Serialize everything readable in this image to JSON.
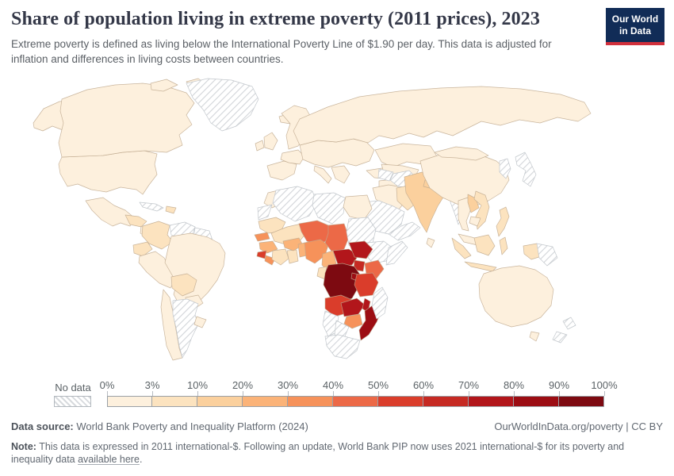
{
  "header": {
    "title": "Share of population living in extreme poverty (2011 prices), 2023",
    "subtitle": "Extreme poverty is defined as living below the International Poverty Line of $1.90 per day. This data is adjusted for inflation and differences in living costs between countries.",
    "logo_line1": "Our World",
    "logo_line2": "in Data"
  },
  "colors": {
    "logo_bg": "#112c57",
    "logo_stripe": "#d2303c",
    "title_text": "#343848",
    "body_text": "#5b6266",
    "no_data_hatch": "#d7dadd"
  },
  "chart_data": {
    "type": "heatmap",
    "subtype": "world-choropleth-map",
    "title": "Share of population living in extreme poverty (2011 prices), 2023",
    "year": "2023",
    "unit": "% of population",
    "legend": {
      "no_data_label": "No data",
      "tick_labels": [
        "0%",
        "3%",
        "10%",
        "20%",
        "30%",
        "40%",
        "50%",
        "60%",
        "70%",
        "80%",
        "90%",
        "100%"
      ],
      "bins": [
        {
          "range": "0-3%",
          "color": "#fdf0dd"
        },
        {
          "range": "3-10%",
          "color": "#fce3bf"
        },
        {
          "range": "10-20%",
          "color": "#fbd09d"
        },
        {
          "range": "20-30%",
          "color": "#fbb378"
        },
        {
          "range": "30-40%",
          "color": "#f6925a"
        },
        {
          "range": "40-50%",
          "color": "#ec6947"
        },
        {
          "range": "50-60%",
          "color": "#da3d2b"
        },
        {
          "range": "60-70%",
          "color": "#c62a23"
        },
        {
          "range": "70-80%",
          "color": "#b2161b"
        },
        {
          "range": "80-90%",
          "color": "#9c0d13"
        },
        {
          "range": "90-100%",
          "color": "#7d0a11"
        }
      ]
    },
    "regions": [
      {
        "id": "united-states",
        "name": "United States",
        "value_bin": "0-3%"
      },
      {
        "id": "canada",
        "name": "Canada",
        "value_bin": "0-3%"
      },
      {
        "id": "greenland",
        "name": "Greenland",
        "value_bin": "No data"
      },
      {
        "id": "iceland",
        "name": "Iceland",
        "value_bin": "0-3%"
      },
      {
        "id": "mexico",
        "name": "Mexico",
        "value_bin": "0-3%"
      },
      {
        "id": "guatemala-honduras",
        "name": "Guatemala & Honduras",
        "value_bin": "3-10%"
      },
      {
        "id": "central-america",
        "name": "Central America",
        "value_bin": "0-3%"
      },
      {
        "id": "cuba",
        "name": "Cuba",
        "value_bin": "No data"
      },
      {
        "id": "hispaniola",
        "name": "Haiti & Dominican Republic",
        "value_bin": "3-10%"
      },
      {
        "id": "colombia",
        "name": "Colombia",
        "value_bin": "3-10%"
      },
      {
        "id": "venezuela",
        "name": "Venezuela",
        "value_bin": "No data"
      },
      {
        "id": "guianas",
        "name": "Guyana & Suriname",
        "value_bin": "No data"
      },
      {
        "id": "ecuador",
        "name": "Ecuador",
        "value_bin": "3-10%"
      },
      {
        "id": "peru",
        "name": "Peru",
        "value_bin": "0-3%"
      },
      {
        "id": "brazil",
        "name": "Brazil",
        "value_bin": "0-3%"
      },
      {
        "id": "bolivia",
        "name": "Bolivia",
        "value_bin": "3-10%"
      },
      {
        "id": "paraguay",
        "name": "Paraguay",
        "value_bin": "0-3%"
      },
      {
        "id": "chile",
        "name": "Chile",
        "value_bin": "0-3%"
      },
      {
        "id": "argentina",
        "name": "Argentina",
        "value_bin": "No data"
      },
      {
        "id": "uruguay",
        "name": "Uruguay",
        "value_bin": "0-3%"
      },
      {
        "id": "europe",
        "name": "Europe",
        "value_bin": "0-3%"
      },
      {
        "id": "russia",
        "name": "Russia",
        "value_bin": "0-3%"
      },
      {
        "id": "turkey",
        "name": "Turkey",
        "value_bin": "0-3%"
      },
      {
        "id": "levant-iraq",
        "name": "Iraq & Levant",
        "value_bin": "0-3%"
      },
      {
        "id": "iran",
        "name": "Iran",
        "value_bin": "0-3%"
      },
      {
        "id": "saudi-arabia",
        "name": "Saudi Arabia",
        "value_bin": "No data"
      },
      {
        "id": "yemen-oman",
        "name": "Yemen & Oman",
        "value_bin": "No data"
      },
      {
        "id": "kazakhstan",
        "name": "Kazakhstan",
        "value_bin": "0-3%"
      },
      {
        "id": "central-asia",
        "name": "Central Asia",
        "value_bin": "0-3%"
      },
      {
        "id": "turkmenistan",
        "name": "Turkmenistan",
        "value_bin": "No data"
      },
      {
        "id": "afghanistan",
        "name": "Afghanistan",
        "value_bin": "No data"
      },
      {
        "id": "pakistan",
        "name": "Pakistan",
        "value_bin": "3-10%"
      },
      {
        "id": "india",
        "name": "India",
        "value_bin": "10-20%"
      },
      {
        "id": "nepal",
        "name": "Nepal",
        "value_bin": "10-20%"
      },
      {
        "id": "bangladesh",
        "name": "Bangladesh",
        "value_bin": "20-30%"
      },
      {
        "id": "sri-lanka",
        "name": "Sri Lanka",
        "value_bin": "0-3%"
      },
      {
        "id": "myanmar",
        "name": "Myanmar",
        "value_bin": "No data"
      },
      {
        "id": "china",
        "name": "China",
        "value_bin": "0-3%"
      },
      {
        "id": "mongolia",
        "name": "Mongolia",
        "value_bin": "0-3%"
      },
      {
        "id": "japan",
        "name": "Japan",
        "value_bin": "No data"
      },
      {
        "id": "korea",
        "name": "Korea",
        "value_bin": "No data"
      },
      {
        "id": "thailand",
        "name": "Thailand",
        "value_bin": "0-3%"
      },
      {
        "id": "laos",
        "name": "Laos",
        "value_bin": "10-20%"
      },
      {
        "id": "vietnam",
        "name": "Vietnam",
        "value_bin": "3-10%"
      },
      {
        "id": "cambodia",
        "name": "Cambodia",
        "value_bin": "0-3%"
      },
      {
        "id": "malaysia",
        "name": "Malaysia",
        "value_bin": "0-3%"
      },
      {
        "id": "philippines",
        "name": "Philippines",
        "value_bin": "3-10%"
      },
      {
        "id": "indonesia",
        "name": "Indonesia",
        "value_bin": "3-10%"
      },
      {
        "id": "papua-new-guinea",
        "name": "Papua New Guinea",
        "value_bin": "No data"
      },
      {
        "id": "australia",
        "name": "Australia",
        "value_bin": "0-3%"
      },
      {
        "id": "new-zealand",
        "name": "New Zealand",
        "value_bin": "No data"
      },
      {
        "id": "morocco",
        "name": "Morocco",
        "value_bin": "0-3%"
      },
      {
        "id": "western-sahara",
        "name": "Western Sahara",
        "value_bin": "No data"
      },
      {
        "id": "algeria",
        "name": "Algeria",
        "value_bin": "No data"
      },
      {
        "id": "libya",
        "name": "Libya",
        "value_bin": "No data"
      },
      {
        "id": "egypt",
        "name": "Egypt",
        "value_bin": "0-3%"
      },
      {
        "id": "mauritania",
        "name": "Mauritania",
        "value_bin": "3-10%"
      },
      {
        "id": "mali",
        "name": "Mali",
        "value_bin": "3-10%"
      },
      {
        "id": "senegal",
        "name": "Senegal",
        "value_bin": "30-40%"
      },
      {
        "id": "guinea",
        "name": "Guinea",
        "value_bin": "20-30%"
      },
      {
        "id": "sierra-leone",
        "name": "Sierra Leone",
        "value_bin": "50-60%"
      },
      {
        "id": "liberia",
        "name": "Liberia",
        "value_bin": "30-40%"
      },
      {
        "id": "cote-divoire",
        "name": "Cote d'Ivoire",
        "value_bin": "3-10%"
      },
      {
        "id": "ghana",
        "name": "Ghana",
        "value_bin": "3-10%"
      },
      {
        "id": "burkina-faso",
        "name": "Burkina Faso",
        "value_bin": "20-30%"
      },
      {
        "id": "benin-togo",
        "name": "Benin & Togo",
        "value_bin": "20-30%"
      },
      {
        "id": "niger",
        "name": "Niger",
        "value_bin": "40-50%"
      },
      {
        "id": "nigeria",
        "name": "Nigeria",
        "value_bin": "30-40%"
      },
      {
        "id": "chad",
        "name": "Chad",
        "value_bin": "40-50%"
      },
      {
        "id": "sudan",
        "name": "Sudan",
        "value_bin": "No data"
      },
      {
        "id": "ethiopia",
        "name": "Ethiopia",
        "value_bin": "No data"
      },
      {
        "id": "somalia",
        "name": "Somalia",
        "value_bin": "No data"
      },
      {
        "id": "cameroon",
        "name": "Cameroon",
        "value_bin": "20-30%"
      },
      {
        "id": "central-african-republic",
        "name": "Central African Republic",
        "value_bin": "70-80%"
      },
      {
        "id": "south-sudan",
        "name": "South Sudan",
        "value_bin": "70-80%"
      },
      {
        "id": "uganda",
        "name": "Uganda",
        "value_bin": "60-70%"
      },
      {
        "id": "kenya",
        "name": "Kenya",
        "value_bin": "40-50%"
      },
      {
        "id": "gabon",
        "name": "Gabon",
        "value_bin": "3-10%"
      },
      {
        "id": "republic-of-congo",
        "name": "Republic of Congo",
        "value_bin": "30-40%"
      },
      {
        "id": "democratic-republic-of-congo",
        "name": "Democratic Republic of Congo",
        "value_bin": "90-100%"
      },
      {
        "id": "rwanda-burundi",
        "name": "Rwanda & Burundi",
        "value_bin": "80-90%"
      },
      {
        "id": "tanzania",
        "name": "Tanzania",
        "value_bin": "50-60%"
      },
      {
        "id": "angola",
        "name": "Angola",
        "value_bin": "50-60%"
      },
      {
        "id": "zambia",
        "name": "Zambia",
        "value_bin": "70-80%"
      },
      {
        "id": "malawi",
        "name": "Malawi",
        "value_bin": "70-80%"
      },
      {
        "id": "mozambique",
        "name": "Mozambique",
        "value_bin": "80-90%"
      },
      {
        "id": "zimbabwe",
        "name": "Zimbabwe",
        "value_bin": "30-40%"
      },
      {
        "id": "namibia",
        "name": "Namibia",
        "value_bin": "No data"
      },
      {
        "id": "botswana",
        "name": "Botswana",
        "value_bin": "No data"
      },
      {
        "id": "south-africa",
        "name": "South Africa",
        "value_bin": "No data"
      },
      {
        "id": "madagascar",
        "name": "Madagascar",
        "value_bin": "No data"
      }
    ]
  },
  "footer": {
    "datasource_label": "Data source:",
    "datasource_text": " World Bank Poverty and Inequality Platform (2024)",
    "rights": "OurWorldInData.org/poverty | CC BY",
    "note_label": "Note:",
    "note_before_link": " This data is expressed in 2011 international-$. Following an update, World Bank PIP now uses 2021 international-$ for its poverty and inequality data ",
    "note_link": "available here",
    "note_after_link": "."
  }
}
